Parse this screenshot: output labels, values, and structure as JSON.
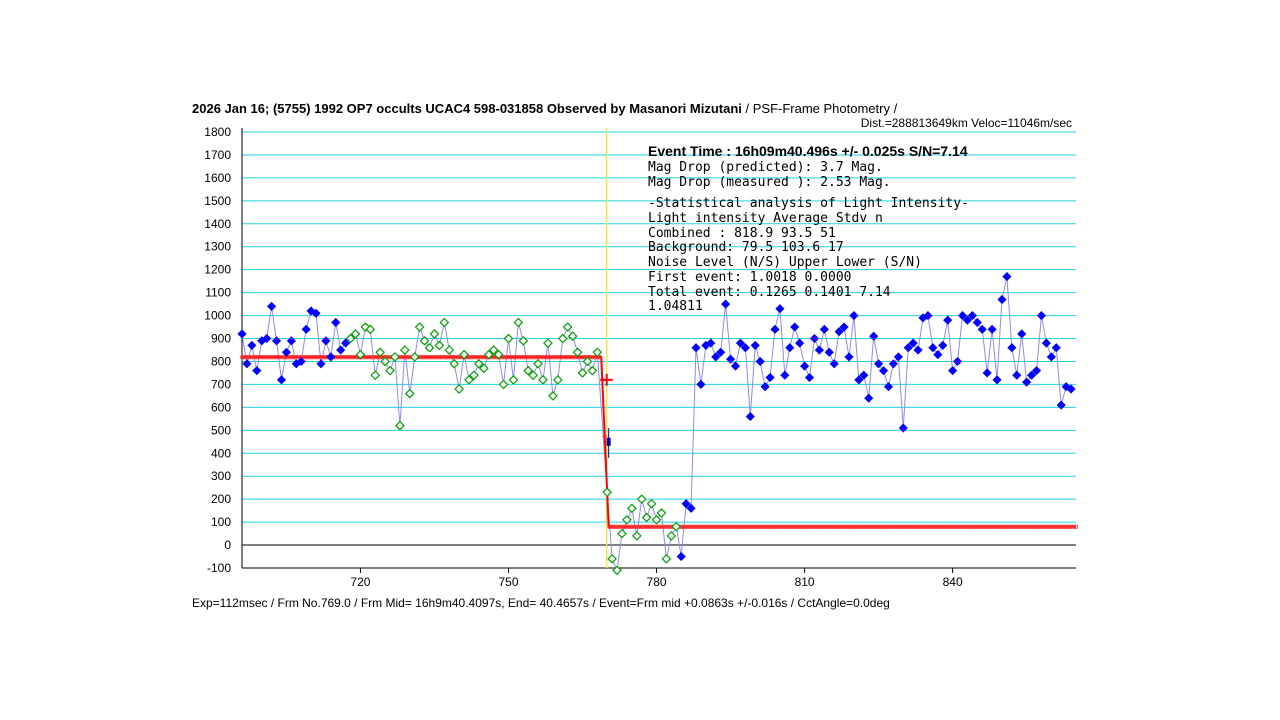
{
  "title": {
    "bold": "2026 Jan 16; (5755) 1992 OP7 occults UCAC4 598-031858 Observed by Masanori Mizutani",
    "normal": "/ PSF-Frame Photometry /"
  },
  "subtitle": "Dist.=288813649km Veloc=11046m/sec",
  "footer": "Exp=112msec / Frm No.769.0 / Frm Mid= 16h9m40.4097s,  End= 40.4657s / Event=Frm mid +0.0863s +/-0.016s / CctAngle=0.0deg",
  "annotations": {
    "event_time": "Event Time : 16h09m40.496s  +/- 0.025s  S/N=7.14",
    "mag_pred": "Mag Drop (predicted):  3.7    Mag.",
    "mag_meas": "Mag Drop (measured ):  2.53   Mag.",
    "stat_header": "-Statistical analysis of Light Intensity-",
    "stat_cols": "Light intensity     Average    Stdv       n",
    "combined": "  Combined   :       818.9      93.5      51",
    "background": "  Background:         79.5     103.6      17",
    "noise_header": "Noise Level (N/S)   Upper      Lower    (S/N)",
    "first_event": "  First event:      1.0018     0.0000",
    "total_event": "  Total event:      0.1265     0.1401     7.14",
    "ratio": "1.04811"
  },
  "chart_data": {
    "type": "line",
    "title": "2026 Jan 16; (5755) 1992 OP7 occults UCAC4 598-031858 Observed by Masanori Mizutani",
    "xlabel": "",
    "ylabel": "",
    "xlim": [
      696,
      865
    ],
    "ylim": [
      -100,
      1800
    ],
    "x_ticks": [
      720,
      750,
      780,
      810,
      840
    ],
    "y_ticks": [
      1800,
      1700,
      1600,
      1500,
      1400,
      1300,
      1200,
      1100,
      1000,
      900,
      800,
      700,
      600,
      500,
      400,
      300,
      200,
      100,
      0,
      -100
    ],
    "grid": true,
    "event_frame": 769,
    "model": {
      "upper_level": 818.9,
      "lower_level": 79.5,
      "drop_start": 768.8,
      "drop_end": 770.3
    },
    "series": [
      {
        "name": "",
        "color": "#0000ff",
        "marker": "filled-diamond",
        "x": [
          696,
          697,
          698,
          699,
          700,
          701,
          702,
          703,
          704,
          705,
          706,
          707,
          708,
          709,
          710,
          711,
          712,
          713,
          714,
          715,
          716,
          717
        ],
        "y": [
          920,
          790,
          870,
          760,
          890,
          900,
          1040,
          890,
          720,
          840,
          890,
          790,
          800,
          940,
          1020,
          1010,
          790,
          890,
          820,
          970,
          850,
          880
        ]
      },
      {
        "name": "",
        "color": "#00a000",
        "marker": "open-diamond",
        "x": [
          718,
          719,
          720,
          721,
          722,
          723,
          724,
          725,
          726,
          727,
          728,
          729,
          730,
          731,
          732,
          733,
          734,
          735,
          736,
          737,
          738,
          739,
          740,
          741,
          742,
          743,
          744,
          745,
          746,
          747,
          748,
          749,
          750,
          751,
          752,
          753,
          754,
          755,
          756,
          757,
          758,
          759,
          760,
          761,
          762,
          763,
          764,
          765,
          766,
          767,
          768
        ],
        "y": [
          900,
          920,
          830,
          950,
          940,
          740,
          840,
          800,
          760,
          820,
          520,
          850,
          660,
          820,
          950,
          890,
          860,
          920,
          870,
          970,
          850,
          790,
          680,
          830,
          720,
          740,
          790,
          770,
          830,
          850,
          830,
          700,
          900,
          720,
          970,
          890,
          760,
          740,
          790,
          720,
          880,
          650,
          720,
          900,
          950,
          910,
          840,
          750,
          800,
          760,
          840
        ]
      },
      {
        "name": "",
        "color": "#00a000",
        "marker": "open-diamond",
        "x": [
          770,
          771,
          772,
          773,
          774,
          775,
          776,
          777,
          778,
          779,
          780,
          781,
          782,
          783,
          784
        ],
        "y": [
          230,
          -60,
          -110,
          50,
          110,
          160,
          40,
          200,
          120,
          180,
          110,
          140,
          -60,
          40,
          80
        ]
      },
      {
        "name": "",
        "color": "#0000ff",
        "marker": "filled-diamond",
        "x": [
          785,
          786,
          787,
          788,
          789,
          790,
          791,
          792,
          793,
          794,
          795,
          796,
          797,
          798,
          799,
          800,
          801,
          802,
          803,
          804,
          805,
          806,
          807,
          808,
          809,
          810,
          811,
          812,
          813,
          814,
          815,
          816,
          817,
          818,
          819,
          820,
          821,
          822,
          823,
          824,
          825,
          826,
          827,
          828,
          829,
          830,
          831,
          832,
          833,
          834,
          835,
          836,
          837,
          838,
          839,
          840,
          841,
          842,
          843,
          844,
          845,
          846,
          847,
          848,
          849,
          850,
          851,
          852,
          853,
          854,
          855,
          856,
          857,
          858,
          859,
          860,
          861,
          862,
          863,
          864
        ],
        "y": [
          -50,
          180,
          160,
          860,
          700,
          870,
          880,
          820,
          840,
          1050,
          810,
          780,
          880,
          860,
          560,
          870,
          800,
          690,
          730,
          940,
          1030,
          740,
          860,
          950,
          880,
          780,
          730,
          900,
          850,
          940,
          840,
          790,
          930,
          950,
          820,
          1000,
          720,
          740,
          640,
          910,
          790,
          760,
          690,
          790,
          820,
          510,
          860,
          880,
          850,
          990,
          1000,
          860,
          830,
          870,
          980,
          760,
          800,
          1000,
          980,
          1000,
          970,
          940,
          750,
          940,
          720,
          1070,
          1170,
          860,
          740,
          920,
          710,
          740,
          760,
          1000,
          880,
          820,
          860,
          610,
          690,
          680
        ]
      }
    ]
  }
}
